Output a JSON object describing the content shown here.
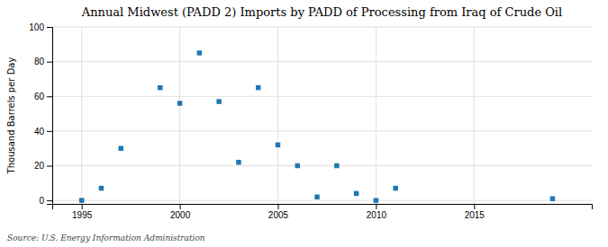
{
  "chart_data": {
    "type": "scatter",
    "title": "Annual Midwest (PADD 2) Imports by PADD of Processing from Iraq of Crude Oil",
    "ylabel": "Thousand Barrels per Day",
    "annotation": "Source: U.S. Energy Information Administration",
    "x": [
      1995,
      1996,
      1997,
      1999,
      2000,
      2001,
      2002,
      2003,
      2004,
      2005,
      2006,
      2007,
      2008,
      2009,
      2010,
      2011,
      2019
    ],
    "values": [
      0,
      7,
      30,
      65,
      56,
      85,
      57,
      22,
      65,
      32,
      20,
      2,
      20,
      4,
      0,
      7,
      1
    ],
    "marker": "square",
    "xlim": [
      1993.5,
      2021
    ],
    "ylim": [
      -2,
      100
    ],
    "xticks": [
      1995,
      2000,
      2005,
      2010,
      2015
    ],
    "yticks": [
      0,
      20,
      40,
      60,
      80,
      100
    ],
    "grid": true
  }
}
